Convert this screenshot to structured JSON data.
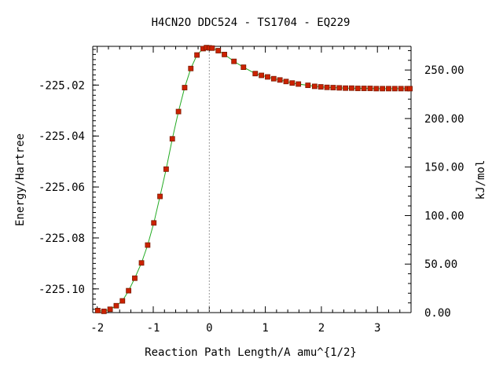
{
  "chart_data": {
    "type": "scatter",
    "title": "H4CN2O   DDC524 - TS1704 - EQ229",
    "xlabel": "Reaction Path Length/A amu^{1/2}",
    "ylabel": "Energy/Hartree",
    "y2label": "kJ/mol",
    "xlim": [
      -2.08,
      3.6
    ],
    "ylim": [
      -225.1093,
      -225.0048
    ],
    "y2lim": [
      0.0,
      274.4
    ],
    "x_ticks": [
      -2,
      -1,
      0,
      1,
      2,
      3
    ],
    "x_tick_labels": [
      "-2",
      "-1",
      "0",
      "1",
      "2",
      "3"
    ],
    "y_ticks": [
      -225.02,
      -225.04,
      -225.06,
      -225.08,
      -225.1
    ],
    "y_tick_labels": [
      "-225.02",
      "-225.04",
      "-225.06",
      "-225.08",
      "-225.10"
    ],
    "y2_ticks": [
      0,
      50,
      100,
      150,
      200,
      250
    ],
    "y2_tick_labels": [
      "0.00",
      "50.00",
      "100.00",
      "150.00",
      "200.00",
      "250.00"
    ],
    "ts_marker_x": 0,
    "grid": false,
    "colors": {
      "line": "#22aa22",
      "marker": "#cc2200",
      "marker_edge": "#7a1a00",
      "ts_line": "#999999",
      "axis": "#000000"
    },
    "series": [
      {
        "x": [
          -1.99,
          -1.88,
          -1.77,
          -1.66,
          -1.55,
          -1.44,
          -1.33,
          -1.21,
          -1.1,
          -0.99,
          -0.88,
          -0.77,
          -0.66,
          -0.55,
          -0.44,
          -0.33,
          -0.22,
          -0.11,
          -0.05,
          0.0,
          0.05,
          0.16,
          0.27,
          0.44,
          0.61,
          0.82,
          0.93,
          1.04,
          1.15,
          1.26,
          1.37,
          1.48,
          1.59,
          1.76,
          1.88,
          1.99,
          2.1,
          2.21,
          2.32,
          2.43,
          2.54,
          2.65,
          2.76,
          2.87,
          2.98,
          3.09,
          3.2,
          3.31,
          3.42,
          3.53,
          3.58
        ],
        "y": [
          -225.1085,
          -225.1088,
          -225.108,
          -225.1066,
          -225.1047,
          -225.1007,
          -225.0958,
          -225.0898,
          -225.0828,
          -225.0741,
          -225.0637,
          -225.053,
          -225.0411,
          -225.0304,
          -225.021,
          -225.0135,
          -225.0082,
          -225.0057,
          -225.0053,
          -225.0054,
          -225.0055,
          -225.0065,
          -225.008,
          -225.0107,
          -225.013,
          -225.0155,
          -225.0162,
          -225.0168,
          -225.0175,
          -225.018,
          -225.0186,
          -225.0192,
          -225.0196,
          -225.0201,
          -225.0205,
          -225.0207,
          -225.0209,
          -225.021,
          -225.0211,
          -225.0212,
          -225.0212,
          -225.0213,
          -225.0213,
          -225.0213,
          -225.0214,
          -225.0214,
          -225.0214,
          -225.0214,
          -225.0214,
          -225.0214,
          -225.0214
        ]
      }
    ]
  }
}
